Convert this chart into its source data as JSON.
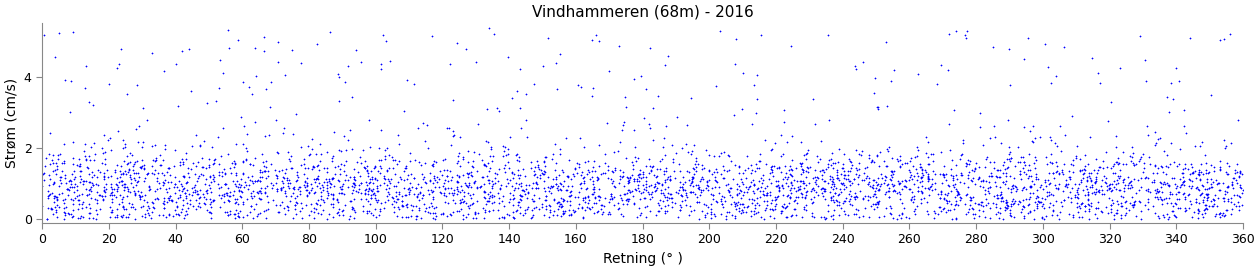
{
  "title": "Vindhammeren (68m) - 2016",
  "xlabel": "Retning (° )",
  "ylabel": "Strøm (cm/s)",
  "xlim": [
    0,
    360
  ],
  "ylim": [
    -0.1,
    5.5
  ],
  "yticks": [
    0,
    2,
    4
  ],
  "xticks": [
    0,
    20,
    40,
    60,
    80,
    100,
    120,
    140,
    160,
    180,
    200,
    220,
    240,
    260,
    280,
    300,
    320,
    340,
    360
  ],
  "dot_color": "#0000FF",
  "marker": "+",
  "markersize": 2.5,
  "linewidths": 0.5,
  "n_points": 4000,
  "seed": 42,
  "bg_color": "#FFFFFF",
  "title_fontsize": 11,
  "label_fontsize": 10,
  "tick_fontsize": 9,
  "spine_color": "#888888"
}
